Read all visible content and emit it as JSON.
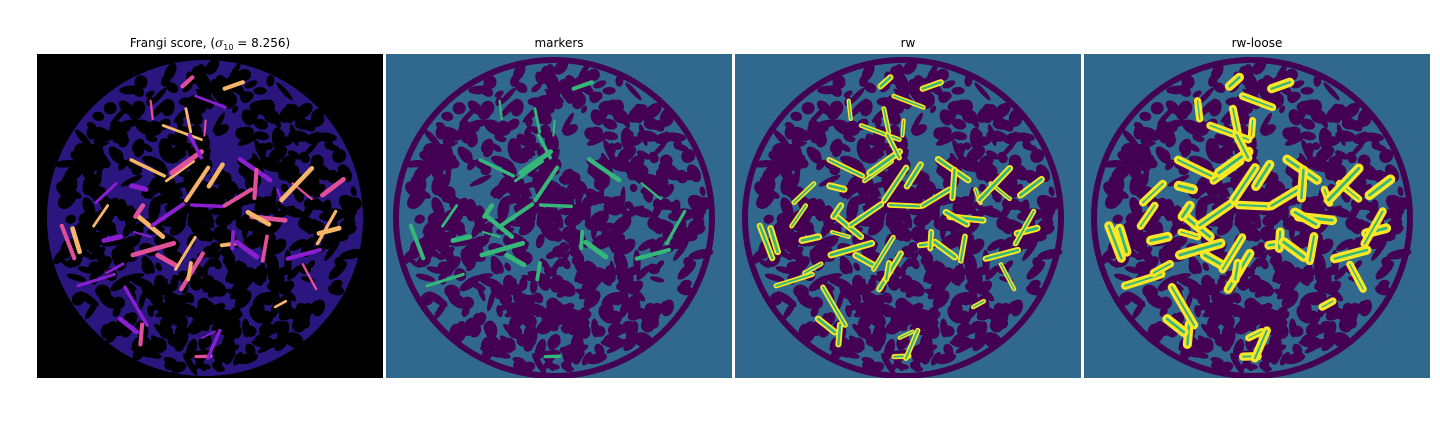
{
  "panels": [
    {
      "title_prefix": "Frangi score, (",
      "title_symbol": "σ",
      "title_subscript": "10",
      "title_suffix": "= 8.256)",
      "colormap": "magma",
      "background_color": "#000000",
      "blob_color": "#2b1680",
      "highlight_colors": [
        "#8a1fd2",
        "#e0509a",
        "#f7b56a"
      ]
    },
    {
      "title": "markers",
      "colormap": "viridis",
      "background_color": "#31688e",
      "blob_color": "#440154",
      "highlight_colors": [
        "#35b779"
      ]
    },
    {
      "title": "rw",
      "colormap": "viridis",
      "background_color": "#31688e",
      "blob_color": "#440154",
      "highlight_colors": [
        "#35b779",
        "#fde725"
      ]
    },
    {
      "title": "rw-loose",
      "colormap": "viridis",
      "background_color": "#31688e",
      "blob_color": "#440154",
      "highlight_colors": [
        "#35b779",
        "#fde725"
      ]
    }
  ]
}
